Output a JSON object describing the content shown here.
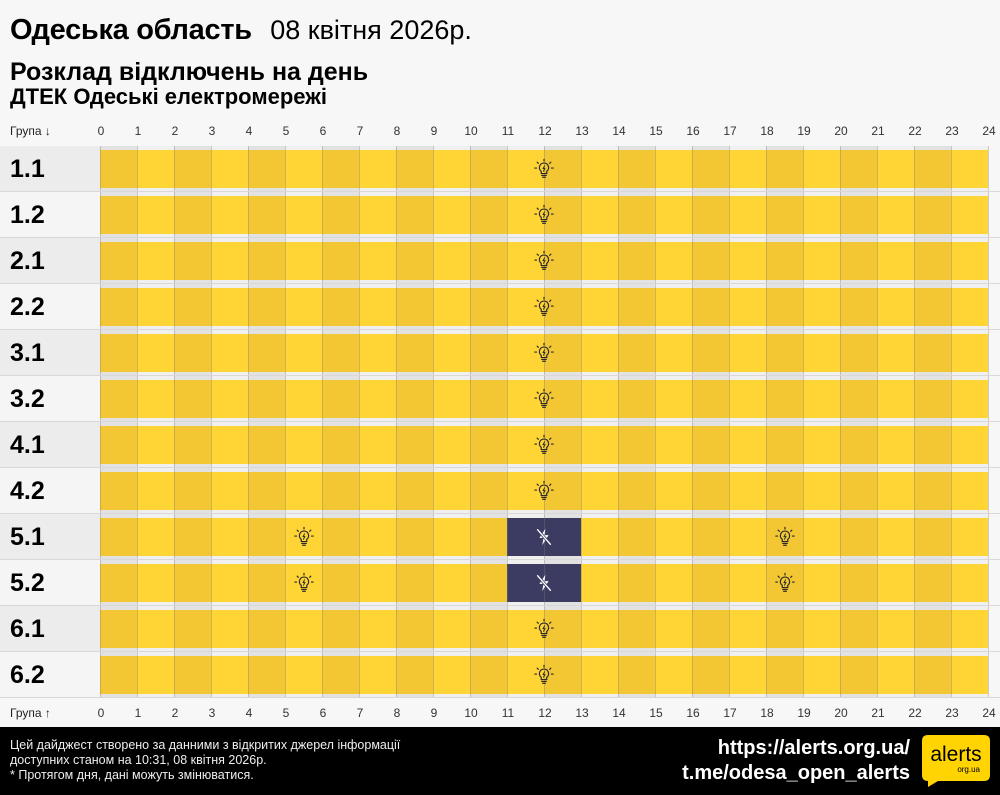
{
  "header": {
    "region": "Одеська область",
    "date": "08 квітня 2026р.",
    "subtitle": "Розклад відключень на день",
    "provider": "ДТЕК Одеські електромережі"
  },
  "axis": {
    "top_label": "Група ↓",
    "bottom_label": "Група ↑",
    "ticks": [
      "0",
      "1",
      "2",
      "3",
      "4",
      "5",
      "6",
      "7",
      "8",
      "9",
      "10",
      "11",
      "12",
      "13",
      "14",
      "15",
      "16",
      "17",
      "18",
      "19",
      "20",
      "21",
      "22",
      "23",
      "24"
    ]
  },
  "legend": {
    "on_icon": "lightbulb-icon",
    "off_icon": "no-power-icon",
    "on_color": "#fed535",
    "on_color_alt": "#f3c733",
    "off_color": "#3c3c63"
  },
  "groups": [
    {
      "label": "1.1",
      "outages": []
    },
    {
      "label": "1.2",
      "outages": []
    },
    {
      "label": "2.1",
      "outages": []
    },
    {
      "label": "2.2",
      "outages": []
    },
    {
      "label": "3.1",
      "outages": []
    },
    {
      "label": "3.2",
      "outages": []
    },
    {
      "label": "4.1",
      "outages": []
    },
    {
      "label": "4.2",
      "outages": []
    },
    {
      "label": "5.1",
      "outages": [
        [
          11,
          13
        ]
      ]
    },
    {
      "label": "5.2",
      "outages": [
        [
          11,
          13
        ]
      ]
    },
    {
      "label": "6.1",
      "outages": []
    },
    {
      "label": "6.2",
      "outages": []
    }
  ],
  "footer": {
    "line1": "Цей дайджест створено за данними з відкритих джерел інформації",
    "line2": "доступних станом на 10:31, 08 квітня 2026р.",
    "line3": "* Протягом дня, дані можуть змінюватися.",
    "link1": "https://alerts.org.ua/",
    "link2": "t.me/odesa_open_alerts",
    "logo_main": "alerts",
    "logo_sub": "org.ua",
    "logo_color": "#ffd400"
  }
}
